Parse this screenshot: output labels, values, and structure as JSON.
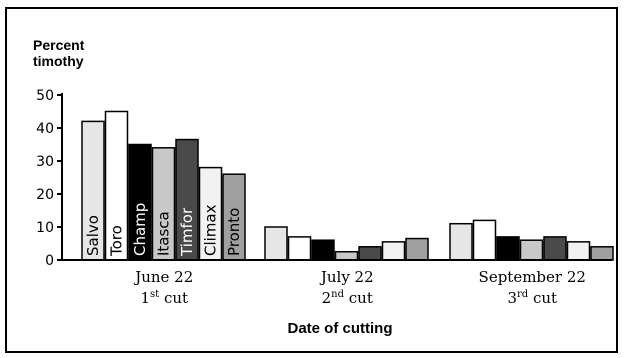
{
  "chart_data": {
    "type": "bar",
    "ylabel": [
      "Percent",
      "timothy"
    ],
    "xlabel": "Date of cutting",
    "ylim": [
      0,
      50
    ],
    "yticks": [
      0,
      10,
      20,
      30,
      40,
      50
    ],
    "categories": [
      {
        "date": "June 22",
        "cut_num": "1",
        "cut_sup": "st",
        "cut_word": "cut"
      },
      {
        "date": "July 22",
        "cut_num": "2",
        "cut_sup": "nd",
        "cut_word": "cut"
      },
      {
        "date": "September 22",
        "cut_num": "3",
        "cut_sup": "rd",
        "cut_word": "cut"
      }
    ],
    "series": [
      {
        "name": "Salvo",
        "color": "#e6e6e6",
        "text_color": "#000000",
        "values": [
          42,
          10,
          11
        ]
      },
      {
        "name": "Toro",
        "color": "#ffffff",
        "text_color": "#000000",
        "values": [
          45,
          7,
          12
        ]
      },
      {
        "name": "Champ",
        "color": "#000000",
        "text_color": "#ffffff",
        "values": [
          35,
          6,
          7
        ]
      },
      {
        "name": "Itasca",
        "color": "#c8c8c8",
        "text_color": "#000000",
        "values": [
          34,
          2.5,
          6
        ]
      },
      {
        "name": "Timfor",
        "color": "#4a4a4a",
        "text_color": "#ffffff",
        "values": [
          36.5,
          4,
          7
        ]
      },
      {
        "name": "Climax",
        "color": "#f2f2f2",
        "text_color": "#000000",
        "values": [
          28,
          5.5,
          5.5
        ]
      },
      {
        "name": "Pronto",
        "color": "#a0a0a0",
        "text_color": "#000000",
        "values": [
          26,
          6.5,
          4
        ]
      }
    ]
  }
}
